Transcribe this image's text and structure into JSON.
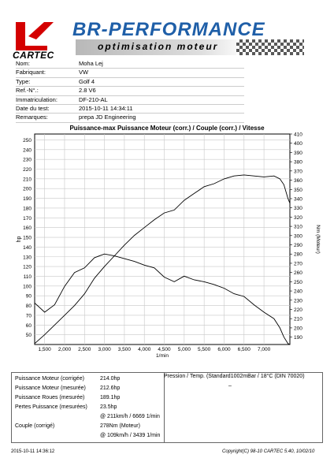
{
  "header": {
    "company": "CARTEC",
    "brand": "BR-PERFORMANCE",
    "subtitle": "optimisation moteur"
  },
  "info": [
    {
      "label": "Nom:",
      "value": "Moha Lej"
    },
    {
      "label": "Fabriquant:",
      "value": "VW"
    },
    {
      "label": "Type:",
      "value": "Golf 4"
    },
    {
      "label": "Ref.-N°.:",
      "value": "2.8 V6"
    },
    {
      "label": "Immatriculation:",
      "value": "DF-210-AL"
    },
    {
      "label": "Date du test:",
      "value": "2015-10-11 14:34:11"
    },
    {
      "label": "Remarques:",
      "value": "prepa JD Engineering"
    }
  ],
  "chart_data": {
    "type": "line",
    "title": "Puissance-max Puissance Moteur (corr.) / Couple (corr.) / Vitesse",
    "xlabel": "1/min",
    "ylabel": "hp",
    "y2label": "Nm (Moteur)",
    "xlim": [
      1250,
      7650
    ],
    "ylim": [
      40,
      256
    ],
    "y2lim": [
      182,
      410
    ],
    "x_ticks": [
      1500,
      2000,
      2500,
      3000,
      3500,
      4000,
      4500,
      5000,
      5500,
      6000,
      6500,
      7000
    ],
    "x_tick_labels": [
      "1,500",
      "2,000",
      "2,500",
      "3,000",
      "3,500",
      "4,000",
      "4,500",
      "5,000",
      "5,500",
      "6,000",
      "6,500",
      "7,000"
    ],
    "y_ticks": [
      50,
      60,
      70,
      80,
      90,
      100,
      110,
      120,
      130,
      140,
      150,
      160,
      170,
      180,
      190,
      200,
      210,
      220,
      230,
      240,
      250
    ],
    "y2_ticks": [
      190,
      200,
      210,
      220,
      230,
      240,
      250,
      260,
      270,
      280,
      290,
      300,
      310,
      320,
      330,
      340,
      350,
      360,
      370,
      380,
      390,
      400,
      410
    ],
    "grid": true,
    "series": [
      {
        "axis": "left",
        "x": [
          1250,
          1500,
          1750,
          2000,
          2250,
          2500,
          2750,
          3000,
          3250,
          3500,
          3750,
          4000,
          4250,
          4500,
          4750,
          5000,
          5250,
          5500,
          5750,
          6000,
          6250,
          6500,
          6750,
          7000,
          7250,
          7400,
          7500,
          7600,
          7650
        ],
        "values": [
          41,
          50,
          60,
          70,
          80,
          92,
          108,
          120,
          131,
          142,
          152,
          160,
          168,
          175,
          178,
          188,
          195,
          202,
          205,
          210,
          213,
          214,
          213,
          212,
          213,
          210,
          204,
          190,
          185
        ]
      },
      {
        "axis": "right",
        "x": [
          1250,
          1500,
          1750,
          2000,
          2250,
          2500,
          2750,
          3000,
          3250,
          3500,
          3750,
          4000,
          4250,
          4500,
          4750,
          5000,
          5250,
          5500,
          5750,
          6000,
          6250,
          6500,
          6750,
          7000,
          7250,
          7400,
          7500,
          7600,
          7650
        ],
        "values": [
          227,
          217,
          225,
          245,
          260,
          265,
          276,
          280,
          278,
          275,
          272,
          268,
          265,
          255,
          250,
          256,
          252,
          250,
          247,
          243,
          237,
          234,
          225,
          217,
          210,
          200,
          190,
          183,
          182
        ]
      }
    ]
  },
  "results": [
    {
      "label": "Puissance Moteur (corrigée)",
      "value": "214.0hp"
    },
    {
      "label": "Puissance Moteur (mesurée)",
      "value": "212.6hp"
    },
    {
      "label": "Puissance Roues (mesurée)",
      "value": "189.1hp"
    },
    {
      "label": "Pertes Puissance (mesurées)",
      "value": "23.5hp"
    },
    {
      "label": "",
      "value": "@ 211km/h / 6669 1/min"
    },
    {
      "label": "Couple (corrigé)",
      "value": "278Nm (Moteur)"
    },
    {
      "label": "",
      "value": "@ 109km/h / 3439 1/min"
    }
  ],
  "pressure": {
    "label": "Pression / Temp. (Standard1002mBar / 18°C   (DIN 70020)",
    "value": "–"
  },
  "footer": {
    "left": "2015-10-11 14:36:12",
    "right": "Copyright(C) 98-10 CARTEC 5.40, 10/02/10"
  }
}
